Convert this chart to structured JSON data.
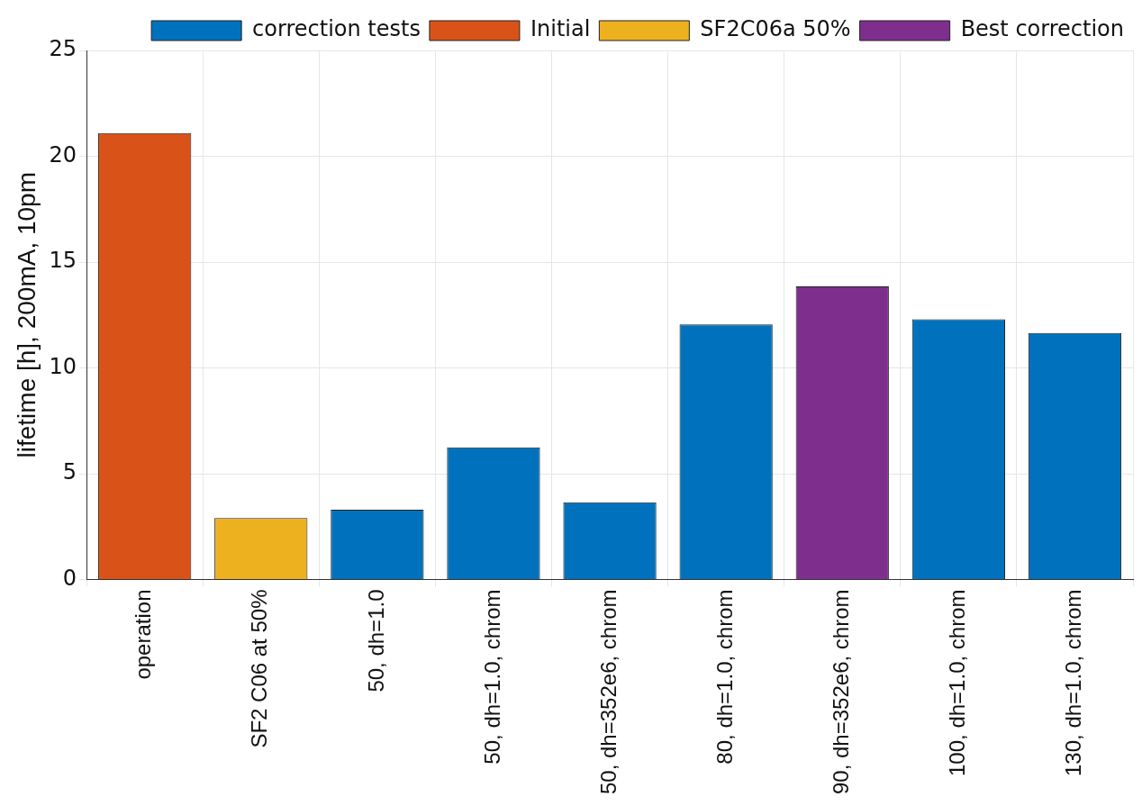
{
  "chart_data": {
    "type": "bar",
    "ylabel": "lifetime [h], 200mA, 10pm",
    "categories": [
      "operation",
      "SF2 C06 at 50%",
      "50, dh=1.0",
      "50, dh=1.0, chrom",
      "50, dh=352e6, chrom",
      "80, dh=1.0, chrom",
      "90, dh=352e6, chrom",
      "100, dh=1.0, chrom",
      "130, dh=1.0, chrom"
    ],
    "series": [
      {
        "name": "correction tests",
        "color": "#0072bd",
        "values": [
          null,
          null,
          3.3,
          6.25,
          3.65,
          12.05,
          null,
          12.3,
          11.65
        ]
      },
      {
        "name": "Initial",
        "color": "#d95319",
        "values": [
          21.1,
          null,
          null,
          null,
          null,
          null,
          null,
          null,
          null
        ]
      },
      {
        "name": "SF2C06a 50%",
        "color": "#edb120",
        "values": [
          null,
          2.9,
          null,
          null,
          null,
          null,
          null,
          null,
          null
        ]
      },
      {
        "name": "Best correction",
        "color": "#7e2f8e",
        "values": [
          null,
          null,
          null,
          null,
          null,
          null,
          13.85,
          null,
          null
        ]
      }
    ],
    "ylim": [
      0,
      25
    ],
    "yticks": [
      0,
      5,
      10,
      15,
      20,
      25
    ],
    "grid": true,
    "legend": "top right"
  }
}
